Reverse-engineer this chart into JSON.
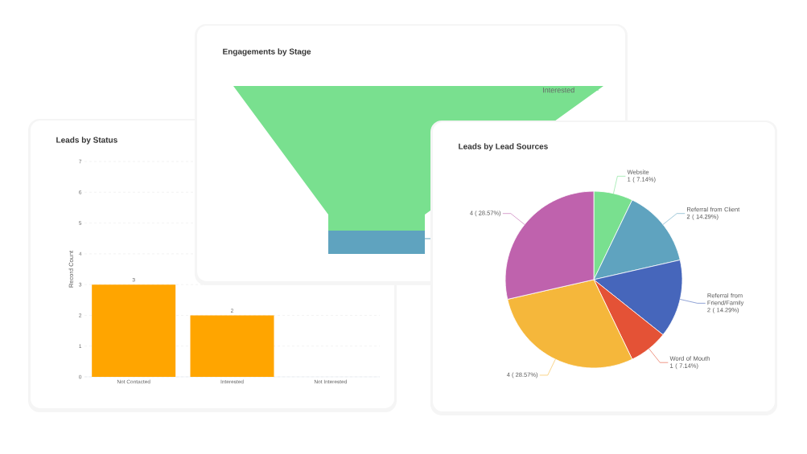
{
  "chart_data": [
    {
      "type": "bar",
      "title": "Leads by Status",
      "ylabel": "Record Count",
      "categories": [
        "Not Contacted",
        "Interested",
        "Not Interested"
      ],
      "values": [
        3,
        2,
        null
      ],
      "color": "#ffa500",
      "ylim": [
        0,
        7
      ],
      "yticks": [
        0,
        1,
        2,
        3,
        4,
        5,
        6,
        7
      ],
      "grid": "y",
      "data_labels": true
    },
    {
      "type": "other",
      "title": "Engagements by Stage",
      "categories": [
        "Interested",
        null
      ],
      "colors": [
        "#79e08f",
        "#5fa3bf"
      ]
    },
    {
      "type": "pie",
      "title": "Leads by Lead Sources",
      "categories": [
        "Website",
        "Referral from Client",
        "Referral from Friend/Family",
        "Word of Mouth",
        null,
        null
      ],
      "values": [
        1,
        2,
        2,
        1,
        4,
        4
      ],
      "colors": [
        "#79e08f",
        "#5fa3bf",
        "#4666bb",
        "#e45236",
        "#f5b73b",
        "#bf62ad"
      ],
      "value_labels": [
        "1 ( 7.14%)",
        "2 ( 14.29%)",
        "2 ( 14.29%)",
        "1 ( 7.14%)",
        "4 ( 28.57%)",
        "4 ( 28.57%)"
      ]
    }
  ]
}
